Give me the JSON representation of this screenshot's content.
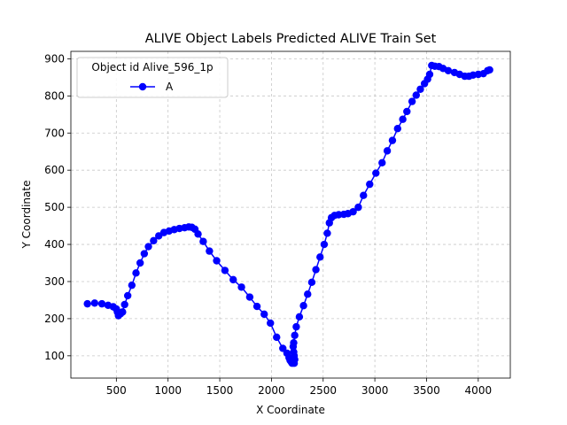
{
  "chart_data": {
    "type": "line",
    "title": "ALIVE Object Labels Predicted ALIVE Train Set",
    "xlabel": "X Coordinate",
    "ylabel": "Y Coordinate",
    "xlim": [
      60,
      4310
    ],
    "ylim": [
      40,
      920
    ],
    "xticks": [
      500,
      1000,
      1500,
      2000,
      2500,
      3000,
      3500,
      4000
    ],
    "yticks": [
      100,
      200,
      300,
      400,
      500,
      600,
      700,
      800,
      900
    ],
    "grid": true,
    "legend": {
      "title": "Object id Alive_596_1p",
      "placement": "top-left"
    },
    "series": [
      {
        "name": "A",
        "color": "#0000ff",
        "marker": "circle",
        "points": [
          [
            220,
            240
          ],
          [
            290,
            242
          ],
          [
            360,
            240
          ],
          [
            420,
            236
          ],
          [
            470,
            232
          ],
          [
            500,
            226
          ],
          [
            510,
            218
          ],
          [
            520,
            208
          ],
          [
            540,
            213
          ],
          [
            560,
            218
          ],
          [
            580,
            238
          ],
          [
            610,
            262
          ],
          [
            650,
            290
          ],
          [
            690,
            323
          ],
          [
            730,
            350
          ],
          [
            770,
            375
          ],
          [
            810,
            394
          ],
          [
            860,
            410
          ],
          [
            910,
            423
          ],
          [
            960,
            432
          ],
          [
            1010,
            436
          ],
          [
            1060,
            440
          ],
          [
            1110,
            443
          ],
          [
            1160,
            445
          ],
          [
            1200,
            447
          ],
          [
            1230,
            446
          ],
          [
            1260,
            441
          ],
          [
            1290,
            428
          ],
          [
            1340,
            408
          ],
          [
            1400,
            382
          ],
          [
            1470,
            356
          ],
          [
            1550,
            330
          ],
          [
            1630,
            305
          ],
          [
            1710,
            285
          ],
          [
            1790,
            258
          ],
          [
            1860,
            233
          ],
          [
            1930,
            212
          ],
          [
            1990,
            188
          ],
          [
            2050,
            150
          ],
          [
            2110,
            120
          ],
          [
            2150,
            107
          ],
          [
            2170,
            95
          ],
          [
            2180,
            88
          ],
          [
            2190,
            84
          ],
          [
            2200,
            80
          ],
          [
            2210,
            82
          ],
          [
            2220,
            80
          ],
          [
            2225,
            90
          ],
          [
            2220,
            100
          ],
          [
            2215,
            110
          ],
          [
            2210,
            125
          ],
          [
            2215,
            135
          ],
          [
            2225,
            155
          ],
          [
            2240,
            178
          ],
          [
            2270,
            205
          ],
          [
            2310,
            235
          ],
          [
            2350,
            266
          ],
          [
            2390,
            298
          ],
          [
            2430,
            332
          ],
          [
            2470,
            366
          ],
          [
            2510,
            400
          ],
          [
            2540,
            430
          ],
          [
            2560,
            458
          ],
          [
            2580,
            472
          ],
          [
            2610,
            478
          ],
          [
            2650,
            480
          ],
          [
            2700,
            481
          ],
          [
            2740,
            483
          ],
          [
            2790,
            488
          ],
          [
            2840,
            500
          ],
          [
            2890,
            532
          ],
          [
            2950,
            562
          ],
          [
            3010,
            592
          ],
          [
            3070,
            620
          ],
          [
            3120,
            652
          ],
          [
            3170,
            680
          ],
          [
            3220,
            712
          ],
          [
            3270,
            737
          ],
          [
            3310,
            758
          ],
          [
            3360,
            785
          ],
          [
            3400,
            802
          ],
          [
            3440,
            818
          ],
          [
            3480,
            833
          ],
          [
            3510,
            845
          ],
          [
            3530,
            858
          ],
          [
            3550,
            882
          ],
          [
            3580,
            880
          ],
          [
            3620,
            879
          ],
          [
            3660,
            874
          ],
          [
            3710,
            868
          ],
          [
            3770,
            863
          ],
          [
            3820,
            858
          ],
          [
            3870,
            853
          ],
          [
            3910,
            853
          ],
          [
            3950,
            856
          ],
          [
            4000,
            858
          ],
          [
            4050,
            860
          ],
          [
            4090,
            868
          ],
          [
            4110,
            870
          ]
        ]
      }
    ]
  }
}
